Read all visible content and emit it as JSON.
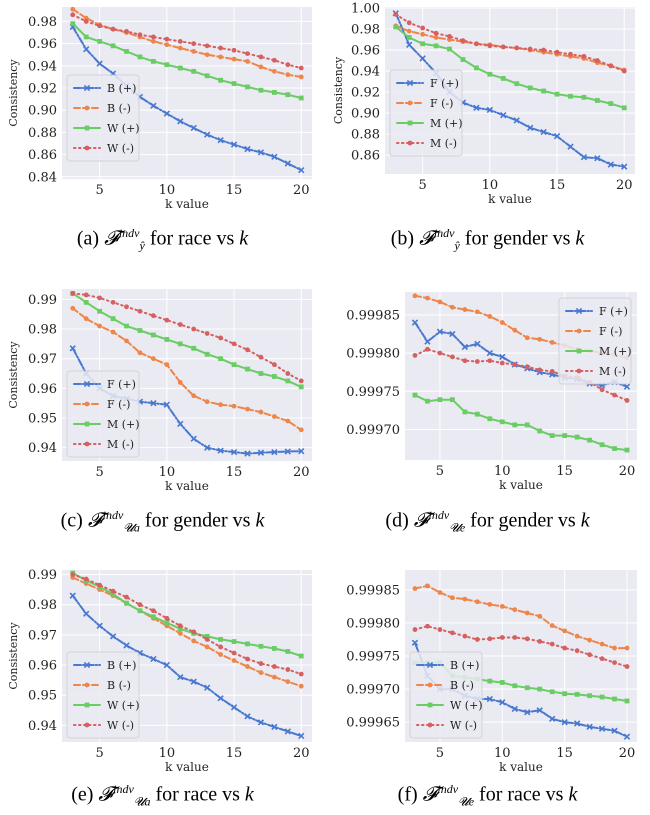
{
  "chart_data": [
    {
      "type": "line",
      "caption": {
        "label": "(a)",
        "sup": "indv",
        "sub": "ŷ",
        "rest": "for race vs",
        "var": "k"
      },
      "xlabel": "k value",
      "ylabel": "Consistency",
      "xticks": [
        5,
        10,
        15,
        20
      ],
      "yticks": [
        0.84,
        0.86,
        0.88,
        0.9,
        0.92,
        0.94,
        0.96,
        0.98
      ],
      "ytick_labels": [
        "0.84",
        "0.86",
        "0.88",
        "0.90",
        "0.92",
        "0.94",
        "0.96",
        "0.98"
      ],
      "xlim": [
        2.2,
        20.8
      ],
      "ylim": [
        0.838,
        0.993
      ],
      "legend": "center-left",
      "grid": true,
      "x": [
        3,
        4,
        5,
        6,
        7,
        8,
        9,
        10,
        11,
        12,
        13,
        14,
        15,
        16,
        17,
        18,
        19,
        20
      ],
      "series": [
        {
          "name": "B (+)",
          "style": "blue",
          "values": [
            0.975,
            0.955,
            0.942,
            0.933,
            0.922,
            0.912,
            0.904,
            0.897,
            0.89,
            0.884,
            0.878,
            0.873,
            0.869,
            0.865,
            0.862,
            0.858,
            0.852,
            0.846
          ]
        },
        {
          "name": "B (-)",
          "style": "orange",
          "values": [
            0.991,
            0.983,
            0.977,
            0.973,
            0.97,
            0.966,
            0.962,
            0.959,
            0.956,
            0.953,
            0.95,
            0.948,
            0.946,
            0.944,
            0.939,
            0.935,
            0.932,
            0.93
          ]
        },
        {
          "name": "W (+)",
          "style": "green",
          "values": [
            0.978,
            0.966,
            0.962,
            0.958,
            0.953,
            0.948,
            0.944,
            0.941,
            0.938,
            0.935,
            0.931,
            0.927,
            0.924,
            0.921,
            0.918,
            0.916,
            0.914,
            0.911
          ]
        },
        {
          "name": "W (-)",
          "style": "red",
          "values": [
            0.986,
            0.98,
            0.976,
            0.973,
            0.971,
            0.968,
            0.966,
            0.964,
            0.962,
            0.96,
            0.958,
            0.956,
            0.954,
            0.951,
            0.948,
            0.945,
            0.941,
            0.938
          ]
        }
      ]
    },
    {
      "type": "line",
      "caption": {
        "label": "(b)",
        "sup": "indv",
        "sub": "ŷ",
        "rest": "for gender vs",
        "var": "k"
      },
      "xlabel": "k value",
      "ylabel": "Consistency",
      "xticks": [
        5,
        10,
        15,
        20
      ],
      "yticks": [
        0.86,
        0.88,
        0.9,
        0.92,
        0.94,
        0.96,
        0.98,
        1.0
      ],
      "ytick_labels": [
        "0.86",
        "0.88",
        "0.90",
        "0.92",
        "0.94",
        "0.96",
        "0.98",
        "1.00"
      ],
      "xlim": [
        2.2,
        20.8
      ],
      "ylim": [
        0.842,
        1.001
      ],
      "legend": "center-left",
      "grid": true,
      "x": [
        3,
        4,
        5,
        6,
        7,
        8,
        9,
        10,
        11,
        12,
        13,
        14,
        15,
        16,
        17,
        18,
        19,
        20
      ],
      "series": [
        {
          "name": "F (+)",
          "style": "blue",
          "values": [
            0.995,
            0.965,
            0.952,
            0.938,
            0.92,
            0.91,
            0.905,
            0.903,
            0.898,
            0.893,
            0.886,
            0.882,
            0.878,
            0.868,
            0.858,
            0.857,
            0.851,
            0.849
          ]
        },
        {
          "name": "F (-)",
          "style": "orange",
          "values": [
            0.983,
            0.978,
            0.975,
            0.972,
            0.97,
            0.968,
            0.966,
            0.965,
            0.963,
            0.962,
            0.96,
            0.958,
            0.956,
            0.954,
            0.952,
            0.948,
            0.945,
            0.941
          ]
        },
        {
          "name": "M (+)",
          "style": "green",
          "values": [
            0.982,
            0.972,
            0.966,
            0.964,
            0.961,
            0.951,
            0.943,
            0.937,
            0.933,
            0.928,
            0.924,
            0.921,
            0.918,
            0.916,
            0.915,
            0.912,
            0.909,
            0.905
          ]
        },
        {
          "name": "M (-)",
          "style": "red",
          "values": [
            0.994,
            0.986,
            0.981,
            0.976,
            0.973,
            0.969,
            0.966,
            0.964,
            0.963,
            0.962,
            0.961,
            0.96,
            0.958,
            0.956,
            0.954,
            0.95,
            0.945,
            0.94
          ]
        }
      ]
    },
    {
      "type": "line",
      "caption": {
        "label": "(c)",
        "sup": "indv",
        "sub": "a",
        "rest": "for gender vs",
        "var": "k"
      },
      "xlabel": "k value",
      "ylabel": "Consistency",
      "xticks": [
        5,
        10,
        15,
        20
      ],
      "yticks": [
        0.94,
        0.95,
        0.96,
        0.97,
        0.98,
        0.99
      ],
      "ytick_labels": [
        "0.94",
        "0.95",
        "0.96",
        "0.97",
        "0.98",
        "0.99"
      ],
      "xlim": [
        2.2,
        20.8
      ],
      "ylim": [
        0.9355,
        0.9935
      ],
      "legend": "lower-left",
      "grid": true,
      "x": [
        3,
        4,
        5,
        6,
        7,
        8,
        9,
        10,
        11,
        12,
        13,
        14,
        15,
        16,
        17,
        18,
        19,
        20
      ],
      "series": [
        {
          "name": "F (+)",
          "style": "blue",
          "values": [
            0.9735,
            0.965,
            0.96,
            0.9575,
            0.9565,
            0.9555,
            0.955,
            0.9545,
            0.948,
            0.943,
            0.94,
            0.939,
            0.9385,
            0.938,
            0.9383,
            0.9385,
            0.9387,
            0.9388
          ]
        },
        {
          "name": "F (-)",
          "style": "orange",
          "values": [
            0.987,
            0.9835,
            0.981,
            0.979,
            0.976,
            0.972,
            0.97,
            0.968,
            0.962,
            0.9575,
            0.9555,
            0.9545,
            0.954,
            0.953,
            0.952,
            0.9505,
            0.949,
            0.946
          ]
        },
        {
          "name": "M (+)",
          "style": "green",
          "values": [
            0.992,
            0.989,
            0.986,
            0.9835,
            0.981,
            0.9795,
            0.978,
            0.9765,
            0.975,
            0.9735,
            0.9715,
            0.97,
            0.968,
            0.9665,
            0.965,
            0.964,
            0.9625,
            0.9605
          ]
        },
        {
          "name": "M (-)",
          "style": "red",
          "values": [
            0.992,
            0.9915,
            0.9905,
            0.989,
            0.9875,
            0.986,
            0.9845,
            0.983,
            0.9815,
            0.98,
            0.9785,
            0.977,
            0.975,
            0.973,
            0.9705,
            0.968,
            0.965,
            0.9625
          ]
        }
      ]
    },
    {
      "type": "line",
      "caption": {
        "label": "(d)",
        "sup": "indv",
        "sub": "e",
        "rest": "for gender vs",
        "var": "k"
      },
      "xlabel": "k value",
      "ylabel": "",
      "xticks": [
        5,
        10,
        15,
        20
      ],
      "yticks": [
        0.9997,
        0.99975,
        0.9998,
        0.99985
      ],
      "ytick_labels": [
        "0.99970",
        "0.99975",
        "0.99980",
        "0.99985"
      ],
      "xlim": [
        2.2,
        20.8
      ],
      "ylim": [
        0.99966,
        0.99988
      ],
      "legend": "upper-right",
      "grid": true,
      "x": [
        3,
        4,
        5,
        6,
        7,
        8,
        9,
        10,
        11,
        12,
        13,
        14,
        15,
        16,
        17,
        18,
        19,
        20
      ],
      "series": [
        {
          "name": "F (+)",
          "style": "blue",
          "values": [
            0.99984,
            0.999815,
            0.999828,
            0.999825,
            0.999808,
            0.999812,
            0.9998,
            0.999795,
            0.999785,
            0.99978,
            0.999775,
            0.999772,
            0.999768,
            0.999766,
            0.99976,
            0.999758,
            0.999762,
            0.999756
          ]
        },
        {
          "name": "F (-)",
          "style": "orange",
          "values": [
            0.999875,
            0.999872,
            0.999867,
            0.99986,
            0.999857,
            0.999854,
            0.999848,
            0.99984,
            0.99983,
            0.99982,
            0.999818,
            0.999814,
            0.99981,
            0.999805,
            0.999803,
            0.9998,
            0.999798,
            0.999794
          ]
        },
        {
          "name": "M (+)",
          "style": "green",
          "values": [
            0.999745,
            0.999737,
            0.999739,
            0.999739,
            0.999723,
            0.99972,
            0.999714,
            0.99971,
            0.999706,
            0.999706,
            0.999698,
            0.999692,
            0.999692,
            0.99969,
            0.999686,
            0.99968,
            0.999675,
            0.999673
          ]
        },
        {
          "name": "M (-)",
          "style": "red",
          "values": [
            0.999797,
            0.999805,
            0.9998,
            0.999795,
            0.99979,
            0.999789,
            0.99979,
            0.999787,
            0.999785,
            0.999782,
            0.999778,
            0.999776,
            0.99977,
            0.999768,
            0.999762,
            0.999752,
            0.999745,
            0.999738
          ]
        }
      ]
    },
    {
      "type": "line",
      "caption": {
        "label": "(e)",
        "sup": "indv",
        "sub": "a",
        "rest": "for race vs",
        "var": "k"
      },
      "xlabel": "k value",
      "ylabel": "Consistency",
      "xticks": [
        5,
        10,
        15,
        20
      ],
      "yticks": [
        0.94,
        0.95,
        0.96,
        0.97,
        0.98,
        0.99
      ],
      "ytick_labels": [
        "0.94",
        "0.95",
        "0.96",
        "0.97",
        "0.98",
        "0.99"
      ],
      "xlim": [
        2.2,
        20.8
      ],
      "ylim": [
        0.9345,
        0.9915
      ],
      "legend": "lower-left",
      "grid": true,
      "x": [
        3,
        4,
        5,
        6,
        7,
        8,
        9,
        10,
        11,
        12,
        13,
        14,
        15,
        16,
        17,
        18,
        19,
        20
      ],
      "series": [
        {
          "name": "B (+)",
          "style": "blue",
          "values": [
            0.983,
            0.977,
            0.973,
            0.9695,
            0.9665,
            0.964,
            0.962,
            0.96,
            0.956,
            0.9545,
            0.9525,
            0.949,
            0.946,
            0.943,
            0.941,
            0.9395,
            0.938,
            0.9365
          ]
        },
        {
          "name": "B (-)",
          "style": "orange",
          "values": [
            0.989,
            0.987,
            0.985,
            0.983,
            0.9805,
            0.978,
            0.9755,
            0.973,
            0.9705,
            0.968,
            0.966,
            0.9635,
            0.9615,
            0.9595,
            0.9575,
            0.956,
            0.9545,
            0.953
          ]
        },
        {
          "name": "W (+)",
          "style": "green",
          "values": [
            0.9905,
            0.988,
            0.986,
            0.9835,
            0.9805,
            0.978,
            0.976,
            0.974,
            0.972,
            0.9705,
            0.9695,
            0.9685,
            0.9678,
            0.967,
            0.9662,
            0.9655,
            0.9645,
            0.963
          ]
        },
        {
          "name": "W (-)",
          "style": "red",
          "values": [
            0.99,
            0.9885,
            0.9865,
            0.9845,
            0.9825,
            0.98,
            0.978,
            0.9755,
            0.973,
            0.971,
            0.9685,
            0.966,
            0.964,
            0.962,
            0.9605,
            0.9595,
            0.9585,
            0.957
          ]
        }
      ]
    },
    {
      "type": "line",
      "caption": {
        "label": "(f)",
        "sup": "indv",
        "sub": "e",
        "rest": "for race vs",
        "var": "k"
      },
      "xlabel": "k value",
      "ylabel": "",
      "xticks": [
        5,
        10,
        15,
        20
      ],
      "yticks": [
        0.99965,
        0.9997,
        0.99975,
        0.9998,
        0.99985
      ],
      "ytick_labels": [
        "0.99965",
        "0.99970",
        "0.99975",
        "0.99980",
        "0.99985"
      ],
      "xlim": [
        2.2,
        20.8
      ],
      "ylim": [
        0.99962,
        0.99988
      ],
      "legend": "lower-left",
      "grid": true,
      "x": [
        3,
        4,
        5,
        6,
        7,
        8,
        9,
        10,
        11,
        12,
        13,
        14,
        15,
        16,
        17,
        18,
        19,
        20
      ],
      "series": [
        {
          "name": "B (+)",
          "style": "blue",
          "values": [
            0.99977,
            0.99972,
            0.9997,
            0.9997,
            0.99969,
            0.999685,
            0.999685,
            0.99968,
            0.99967,
            0.999665,
            0.999668,
            0.999655,
            0.99965,
            0.999648,
            0.999643,
            0.99964,
            0.999637,
            0.999628
          ]
        },
        {
          "name": "B (-)",
          "style": "orange",
          "values": [
            0.999852,
            0.999856,
            0.999846,
            0.999838,
            0.999836,
            0.999832,
            0.999828,
            0.999825,
            0.99982,
            0.999815,
            0.99981,
            0.999796,
            0.999788,
            0.99978,
            0.999774,
            0.999768,
            0.999762,
            0.999762
          ]
        },
        {
          "name": "W (+)",
          "style": "green",
          "values": [
            0.99974,
            0.99974,
            0.99974,
            0.99972,
            0.999718,
            0.999715,
            0.999712,
            0.99971,
            0.999705,
            0.999702,
            0.9997,
            0.999696,
            0.999693,
            0.999692,
            0.99969,
            0.999688,
            0.999685,
            0.999682
          ]
        },
        {
          "name": "W (-)",
          "style": "red",
          "values": [
            0.99979,
            0.999795,
            0.99979,
            0.999785,
            0.99978,
            0.999775,
            0.999776,
            0.999778,
            0.999778,
            0.999776,
            0.999772,
            0.999768,
            0.999762,
            0.999758,
            0.999752,
            0.999746,
            0.99974,
            0.999734
          ]
        }
      ]
    }
  ],
  "colors": {
    "blue": "#4878d0",
    "orange": "#ee854a",
    "green": "#6acc64",
    "red": "#d65f5f",
    "axes_bg": "#eaeaf2",
    "grid": "#ffffff",
    "legend_bg": "#eaeaf2"
  }
}
